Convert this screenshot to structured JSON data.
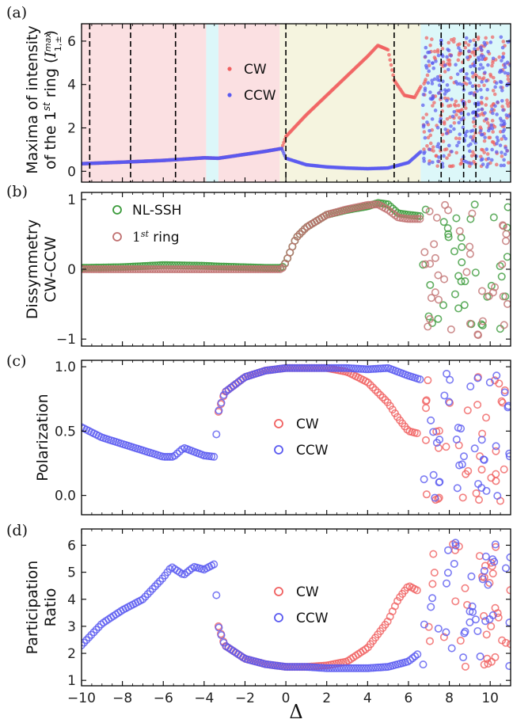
{
  "chart_data": [
    {
      "type": "scatter",
      "panel": "(a)",
      "ylabel_lines": [
        "Maxima of intensity",
        "of the 1st ring (I max 1,±)"
      ],
      "ylabel_parts": {
        "line1": "Maxima of intensity",
        "line2_prefix": "of the 1",
        "line2_sup": "st",
        "line2_mid": " ring (",
        "line2_I": "I",
        "line2_Isup": "max",
        "line2_Isub": "1,±",
        "line2_end": ")"
      },
      "ylim": [
        -0.5,
        6.8
      ],
      "yticks": [
        0,
        2,
        4,
        6
      ],
      "xlim": [
        -10,
        11
      ],
      "shaded_regions": [
        {
          "from": -10,
          "to": -3.9,
          "color": "#fbe0e2"
        },
        {
          "from": -3.9,
          "to": -3.3,
          "color": "#dcf7f9"
        },
        {
          "from": -3.3,
          "to": -0.3,
          "color": "#fbe0e2"
        },
        {
          "from": -0.3,
          "to": 6.6,
          "color": "#f5f4df"
        },
        {
          "from": 6.6,
          "to": 11,
          "color": "#dcf7f9"
        }
      ],
      "dashed_lines_x": [
        -9.6,
        -7.6,
        -5.4,
        0,
        5.3,
        7.6,
        8.7,
        9.3
      ],
      "legend": [
        "CW",
        "CCW"
      ],
      "series": [
        {
          "name": "CW",
          "color": "#f06060",
          "x": [
            -10,
            -8,
            -6,
            -4,
            -3.3,
            -1,
            -0.2,
            0,
            1,
            2,
            3,
            4,
            4.5,
            5,
            5.3,
            5.8,
            6.3,
            6.6
          ],
          "y": [
            0.35,
            0.42,
            0.5,
            0.62,
            0.6,
            0.92,
            1.05,
            1.6,
            2.6,
            3.5,
            4.4,
            5.3,
            5.8,
            5.6,
            4.2,
            3.5,
            3.4,
            3.9
          ]
        },
        {
          "name": "CCW",
          "color": "#5a5af0",
          "x": [
            -10,
            -8,
            -6,
            -4,
            -3.3,
            -1,
            -0.2,
            0,
            1,
            2,
            3,
            4,
            5,
            6,
            6.6
          ],
          "y": [
            0.35,
            0.42,
            0.5,
            0.62,
            0.6,
            0.92,
            1.05,
            0.6,
            0.3,
            0.2,
            0.15,
            0.12,
            0.15,
            0.4,
            0.9
          ]
        }
      ]
    },
    {
      "type": "scatter",
      "panel": "(b)",
      "ylabel_lines": [
        "Dissymmetry",
        "CW-CCW"
      ],
      "ylim": [
        -1.1,
        1.1
      ],
      "yticks": [
        -1,
        0,
        1
      ],
      "xlim": [
        -10,
        11
      ],
      "legend": [
        "NL-SSH",
        "1st ring"
      ],
      "legend_parts": {
        "nl": "NL-SSH",
        "ring_prefix": "1",
        "ring_sup": "st",
        "ring_suffix": " ring"
      },
      "series": [
        {
          "name": "NL-SSH",
          "color": "#3a9a3a",
          "x": [
            -10,
            -8,
            -6,
            -4,
            -3.3,
            -1,
            -0.2,
            0,
            0.5,
            1,
            2,
            3,
            4,
            4.5,
            5,
            5.5,
            6,
            6.6
          ],
          "y": [
            0.02,
            0.03,
            0.06,
            0.05,
            0.04,
            0.02,
            0.02,
            0.1,
            0.45,
            0.6,
            0.78,
            0.85,
            0.9,
            0.95,
            0.93,
            0.8,
            0.78,
            0.76
          ]
        },
        {
          "name": "1st ring",
          "color": "#c07070",
          "x": [
            -10,
            -8,
            -6,
            -4,
            -3.3,
            -1,
            -0.2,
            0,
            0.5,
            1,
            2,
            3,
            4,
            4.5,
            5,
            5.5,
            6,
            6.6
          ],
          "y": [
            0.0,
            0.0,
            0.0,
            0.0,
            0.0,
            0.0,
            0.0,
            0.1,
            0.45,
            0.6,
            0.78,
            0.86,
            0.92,
            0.93,
            0.85,
            0.74,
            0.72,
            0.72
          ]
        }
      ]
    },
    {
      "type": "scatter",
      "panel": "(c)",
      "ylabel_lines": [
        "Polarization"
      ],
      "ylim": [
        -0.15,
        1.05
      ],
      "yticks": [
        0.0,
        0.5,
        1.0
      ],
      "ytick_labels": [
        "0.0",
        "0.5",
        "1.0"
      ],
      "xlim": [
        -10,
        11
      ],
      "legend": [
        "CW",
        "CCW"
      ],
      "series": [
        {
          "name": "CW",
          "color": "#f06060",
          "x": [
            -3.3,
            -3,
            -2,
            -1,
            0,
            1,
            2,
            3,
            4,
            5,
            5.5,
            6,
            6.5
          ],
          "y": [
            0.65,
            0.8,
            0.92,
            0.97,
            0.99,
            0.99,
            0.99,
            0.96,
            0.88,
            0.72,
            0.6,
            0.5,
            0.48
          ]
        },
        {
          "name": "CCW",
          "color": "#5a5af0",
          "x": [
            -10,
            -9,
            -8,
            -7,
            -6,
            -5.5,
            -5,
            -4.5,
            -4,
            -3.5,
            -3.3,
            -3,
            -2,
            -1,
            0,
            1,
            2,
            3,
            4,
            5,
            5.5,
            6,
            6.6
          ],
          "y": [
            0.53,
            0.45,
            0.4,
            0.35,
            0.3,
            0.3,
            0.37,
            0.34,
            0.31,
            0.3,
            0.65,
            0.8,
            0.92,
            0.97,
            0.99,
            0.99,
            0.99,
            0.99,
            0.98,
            0.99,
            0.96,
            0.93,
            0.9
          ]
        }
      ]
    },
    {
      "type": "scatter",
      "panel": "(d)",
      "ylabel_lines": [
        "Participation",
        "Ratio"
      ],
      "ylim": [
        0.8,
        6.6
      ],
      "yticks": [
        1,
        2,
        3,
        4,
        5,
        6
      ],
      "xlim": [
        -10,
        11
      ],
      "xticks": [
        -10,
        -8,
        -6,
        -4,
        -2,
        0,
        2,
        4,
        6,
        8,
        10
      ],
      "xtick_labels": [
        "−10",
        "−8",
        "−6",
        "−4",
        "−2",
        "0",
        "2",
        "4",
        "6",
        "8",
        "10"
      ],
      "xlabel": "Δ",
      "legend": [
        "CW",
        "CCW"
      ],
      "series": [
        {
          "name": "CW",
          "color": "#f06060",
          "x": [
            -3.3,
            -3,
            -2,
            -1,
            0,
            1,
            2,
            3,
            4,
            5,
            5.5,
            6,
            6.5
          ],
          "y": [
            3.0,
            2.3,
            1.8,
            1.6,
            1.5,
            1.5,
            1.55,
            1.7,
            2.2,
            3.2,
            4.0,
            4.5,
            4.3
          ]
        },
        {
          "name": "CCW",
          "color": "#5a5af0",
          "x": [
            -10,
            -9,
            -8,
            -7,
            -6,
            -5.6,
            -5,
            -4.5,
            -4,
            -3.5,
            -3.3,
            -3,
            -2,
            -1,
            0,
            1,
            2,
            3,
            4,
            5,
            6,
            6.5
          ],
          "y": [
            2.3,
            3.1,
            3.6,
            4.0,
            4.8,
            5.2,
            4.9,
            5.2,
            5.1,
            5.3,
            3.0,
            2.3,
            1.8,
            1.6,
            1.5,
            1.5,
            1.45,
            1.45,
            1.45,
            1.5,
            1.7,
            2.0
          ]
        }
      ]
    }
  ]
}
